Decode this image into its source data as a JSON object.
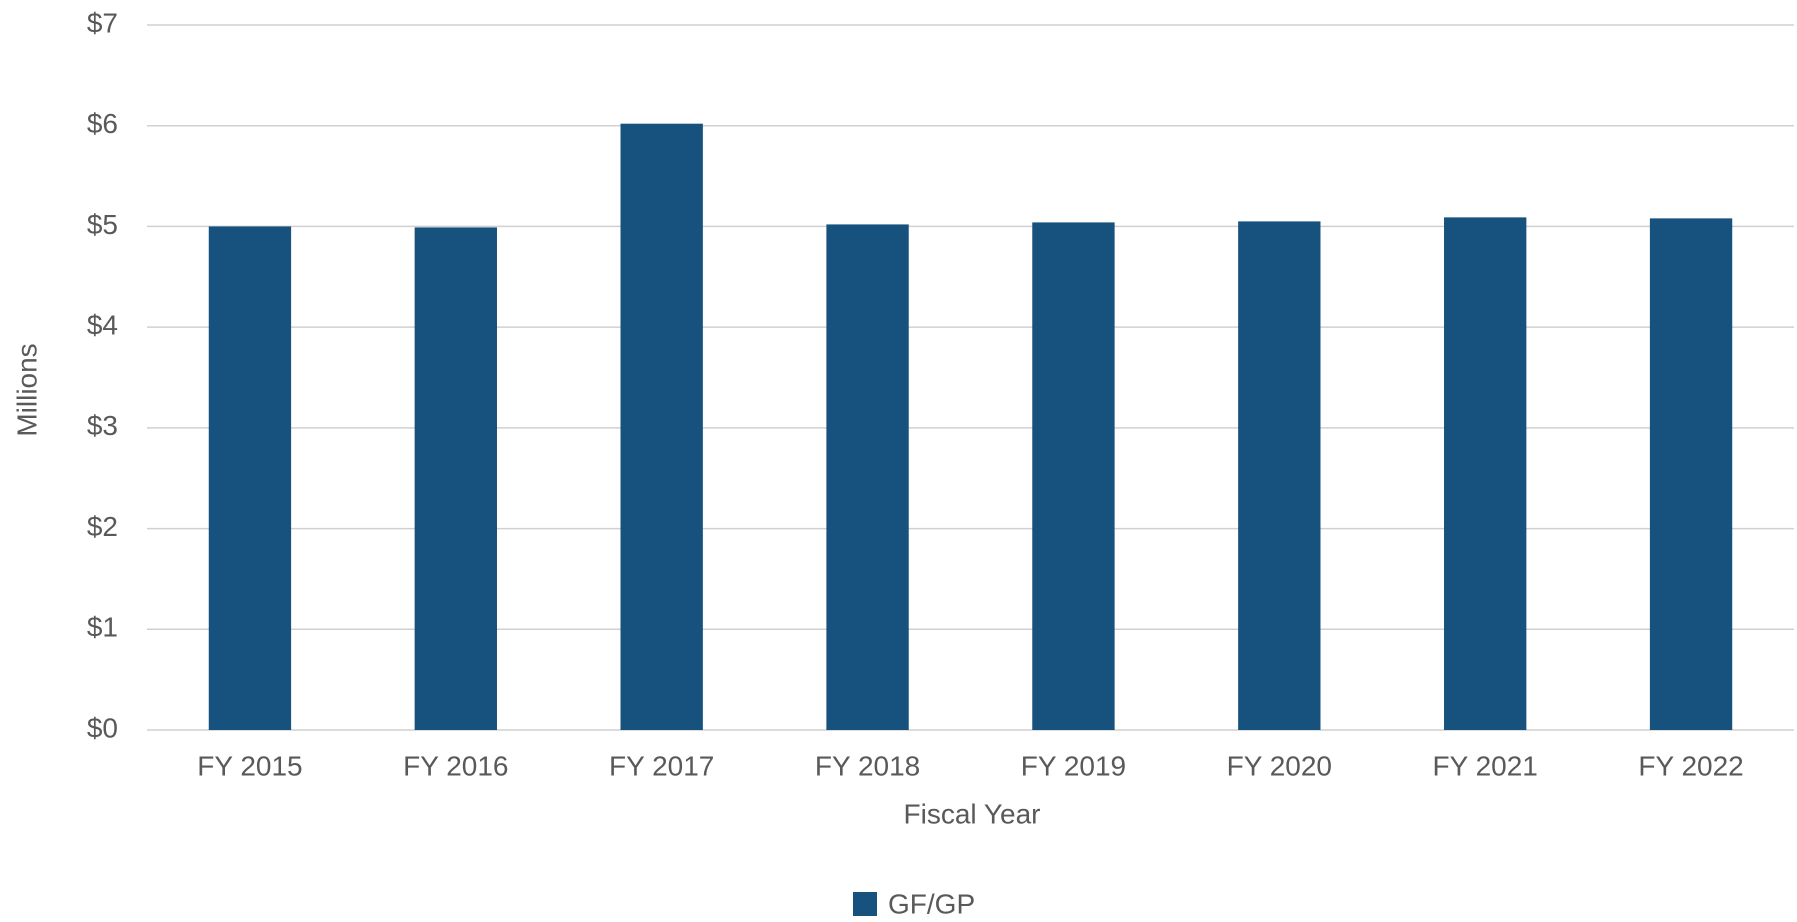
{
  "chart_data": {
    "type": "bar",
    "x_label": "Fiscal Year",
    "y_label": "Millions",
    "categories": [
      "FY 2015",
      "FY 2016",
      "FY 2017",
      "FY 2018",
      "FY 2019",
      "FY 2020",
      "FY 2021",
      "FY 2022"
    ],
    "series": [
      {
        "name": "GF/GP",
        "color": "#16527d",
        "values": [
          5.0,
          4.99,
          6.02,
          5.02,
          5.04,
          5.05,
          5.09,
          5.08
        ]
      }
    ],
    "ylim": [
      0,
      7
    ],
    "yticks": [
      {
        "value": 0,
        "label": "$0"
      },
      {
        "value": 1,
        "label": "$1"
      },
      {
        "value": 2,
        "label": "$2"
      },
      {
        "value": 3,
        "label": "$3"
      },
      {
        "value": 4,
        "label": "$4"
      },
      {
        "value": 5,
        "label": "$5"
      },
      {
        "value": 6,
        "label": "$6"
      },
      {
        "value": 7,
        "label": "$7"
      }
    ],
    "grid": true,
    "legend": "bottom"
  }
}
